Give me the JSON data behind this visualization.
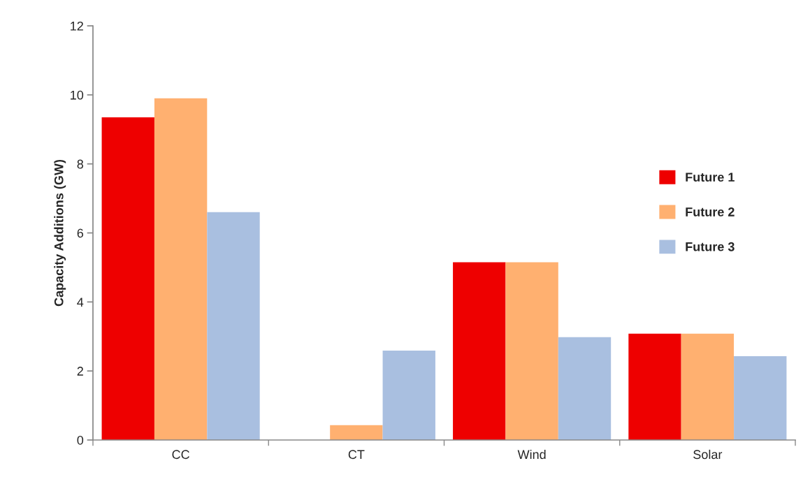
{
  "chart_data": {
    "type": "bar",
    "ylabel": "Capacity Additions (GW)",
    "categories": [
      "CC",
      "CT",
      "Wind",
      "Solar"
    ],
    "series": [
      {
        "name": "Future 1",
        "color": "#ee0000",
        "values": [
          9.35,
          0,
          5.15,
          3.08
        ]
      },
      {
        "name": "Future 2",
        "color": "#ffb070",
        "values": [
          9.9,
          0.43,
          5.15,
          3.08
        ]
      },
      {
        "name": "Future 3",
        "color": "#a9bfe0",
        "values": [
          6.6,
          2.59,
          2.98,
          2.43
        ]
      }
    ],
    "ylim": [
      0,
      12
    ],
    "yticks": [
      0,
      2,
      4,
      6,
      8,
      10,
      12
    ],
    "grid": false,
    "legend": "right"
  }
}
